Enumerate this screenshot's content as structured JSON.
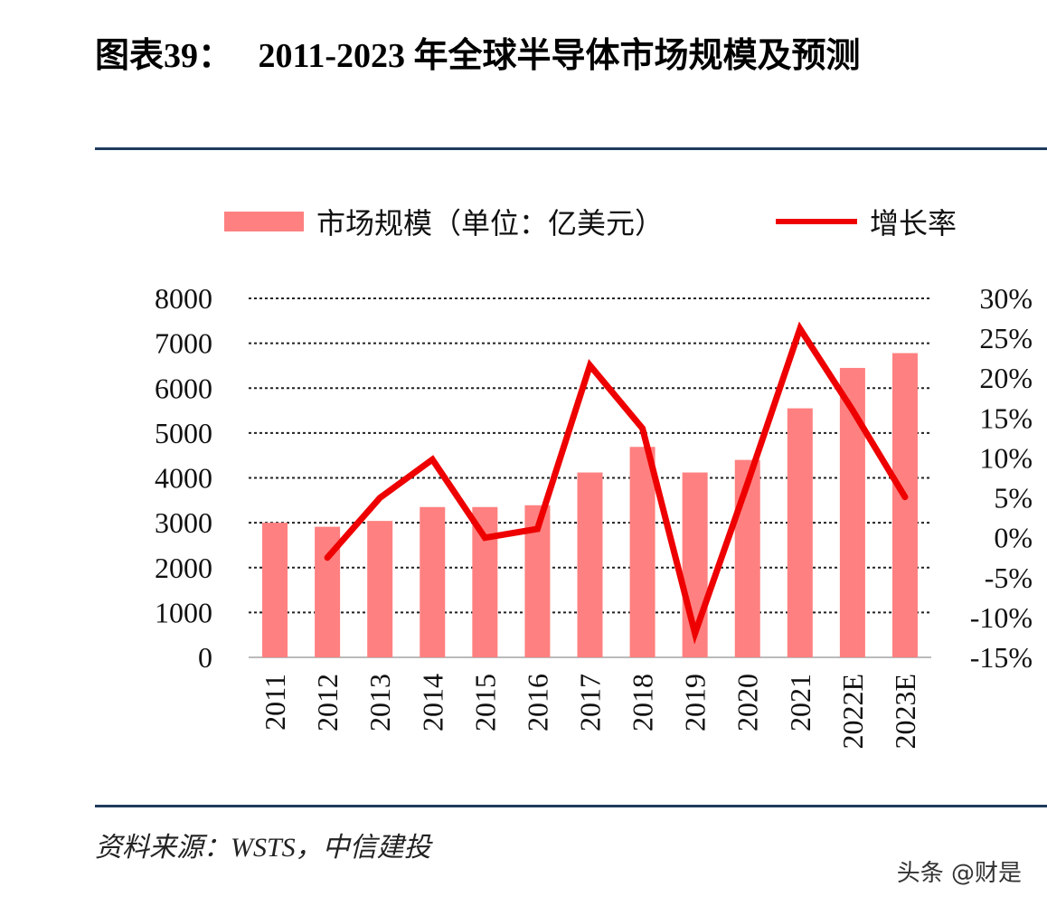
{
  "header": {
    "title": "图表39：   2011-2023 年全球半导体市场规模及预测"
  },
  "footer": {
    "source": "资料来源：WSTS，中信建投",
    "watermark": "头条 @财是"
  },
  "chart_data": {
    "type": "bar+line",
    "title": "图表39：   2011-2023 年全球半导体市场规模及预测",
    "categories": [
      "2011",
      "2012",
      "2013",
      "2014",
      "2015",
      "2016",
      "2017",
      "2018",
      "2019",
      "2020",
      "2021",
      "2022E",
      "2023E"
    ],
    "series": [
      {
        "name": "市场规模（单位：亿美元）",
        "type": "bar",
        "axis": "left",
        "color": "#ff8080",
        "values": [
          3000,
          2910,
          3040,
          3350,
          3350,
          3390,
          4120,
          4690,
          4120,
          4400,
          5550,
          6450,
          6780
        ]
      },
      {
        "name": "增长率",
        "type": "line",
        "axis": "right",
        "color": "#ee0000",
        "values": [
          null,
          -2.5,
          5.0,
          9.8,
          0.0,
          1.1,
          21.6,
          13.7,
          -12.0,
          6.8,
          26.2,
          16.0,
          5.1
        ]
      }
    ],
    "left_axis": {
      "ylim": [
        0,
        8000
      ],
      "ticks": [
        "0",
        "1000",
        "2000",
        "3000",
        "4000",
        "5000",
        "6000",
        "7000",
        "8000"
      ]
    },
    "right_axis": {
      "ylim": [
        -15,
        30
      ],
      "ticks": [
        "-15%",
        "-10%",
        "-5%",
        "0%",
        "5%",
        "10%",
        "15%",
        "20%",
        "25%",
        "30%"
      ]
    },
    "grid": true,
    "legend_position": "top"
  }
}
